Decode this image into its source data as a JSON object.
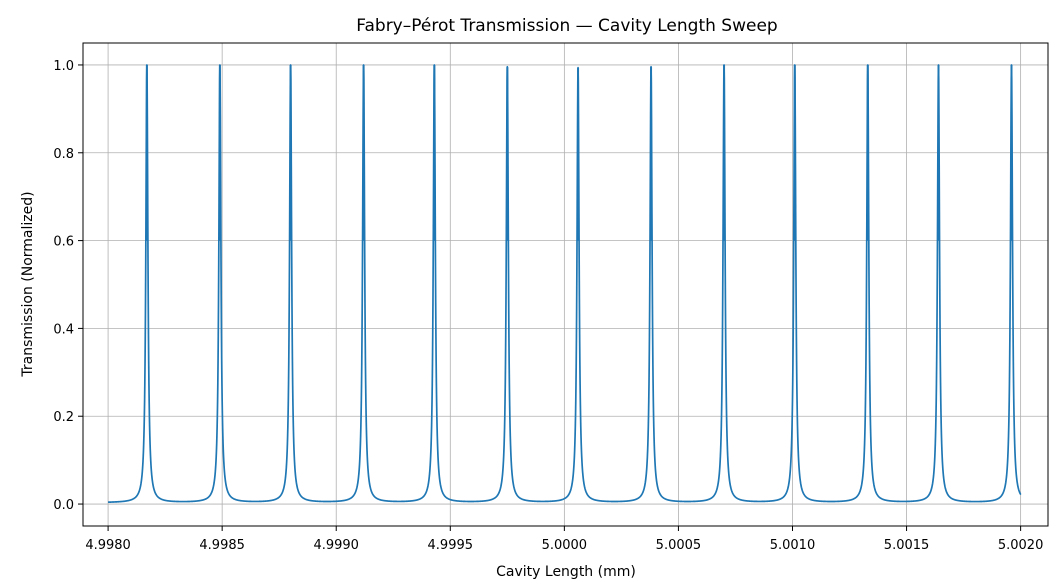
{
  "chart_data": {
    "type": "line",
    "title": "Fabry–Pérot Transmission — Cavity Length Sweep",
    "xlabel": "Cavity Length (mm)",
    "ylabel": "Transmission (Normalized)",
    "xlim": [
      4.99789,
      5.00212
    ],
    "ylim": [
      -0.05,
      1.05
    ],
    "xticks": [
      4.998,
      4.9985,
      4.999,
      4.9995,
      5.0,
      5.0005,
      5.001,
      5.0015,
      5.002
    ],
    "xtick_labels": [
      "4.9980",
      "4.9985",
      "4.9990",
      "4.9995",
      "5.0000",
      "5.0005",
      "5.0010",
      "5.0015",
      "5.0020"
    ],
    "yticks": [
      0.0,
      0.2,
      0.4,
      0.6,
      0.8,
      1.0
    ],
    "ytick_labels": [
      "0.0",
      "0.2",
      "0.4",
      "0.6",
      "0.8",
      "1.0"
    ],
    "grid": true,
    "line_color": "#1f77b4",
    "x_range": [
      4.998,
      5.002
    ],
    "series": [
      {
        "peaks": [
          {
            "x": 4.99817,
            "y": 1.0
          },
          {
            "x": 4.99849,
            "y": 1.0
          },
          {
            "x": 4.9988,
            "y": 1.0
          },
          {
            "x": 4.99912,
            "y": 1.0
          },
          {
            "x": 4.99943,
            "y": 1.0
          },
          {
            "x": 4.99975,
            "y": 0.995
          },
          {
            "x": 5.00006,
            "y": 0.993
          },
          {
            "x": 5.00038,
            "y": 0.995
          },
          {
            "x": 5.0007,
            "y": 1.0
          },
          {
            "x": 5.00101,
            "y": 1.0
          },
          {
            "x": 5.00133,
            "y": 1.0
          },
          {
            "x": 5.00164,
            "y": 1.0
          },
          {
            "x": 5.00196,
            "y": 1.0
          }
        ],
        "baseline": 0.003,
        "end_value": 0.024
      }
    ]
  }
}
